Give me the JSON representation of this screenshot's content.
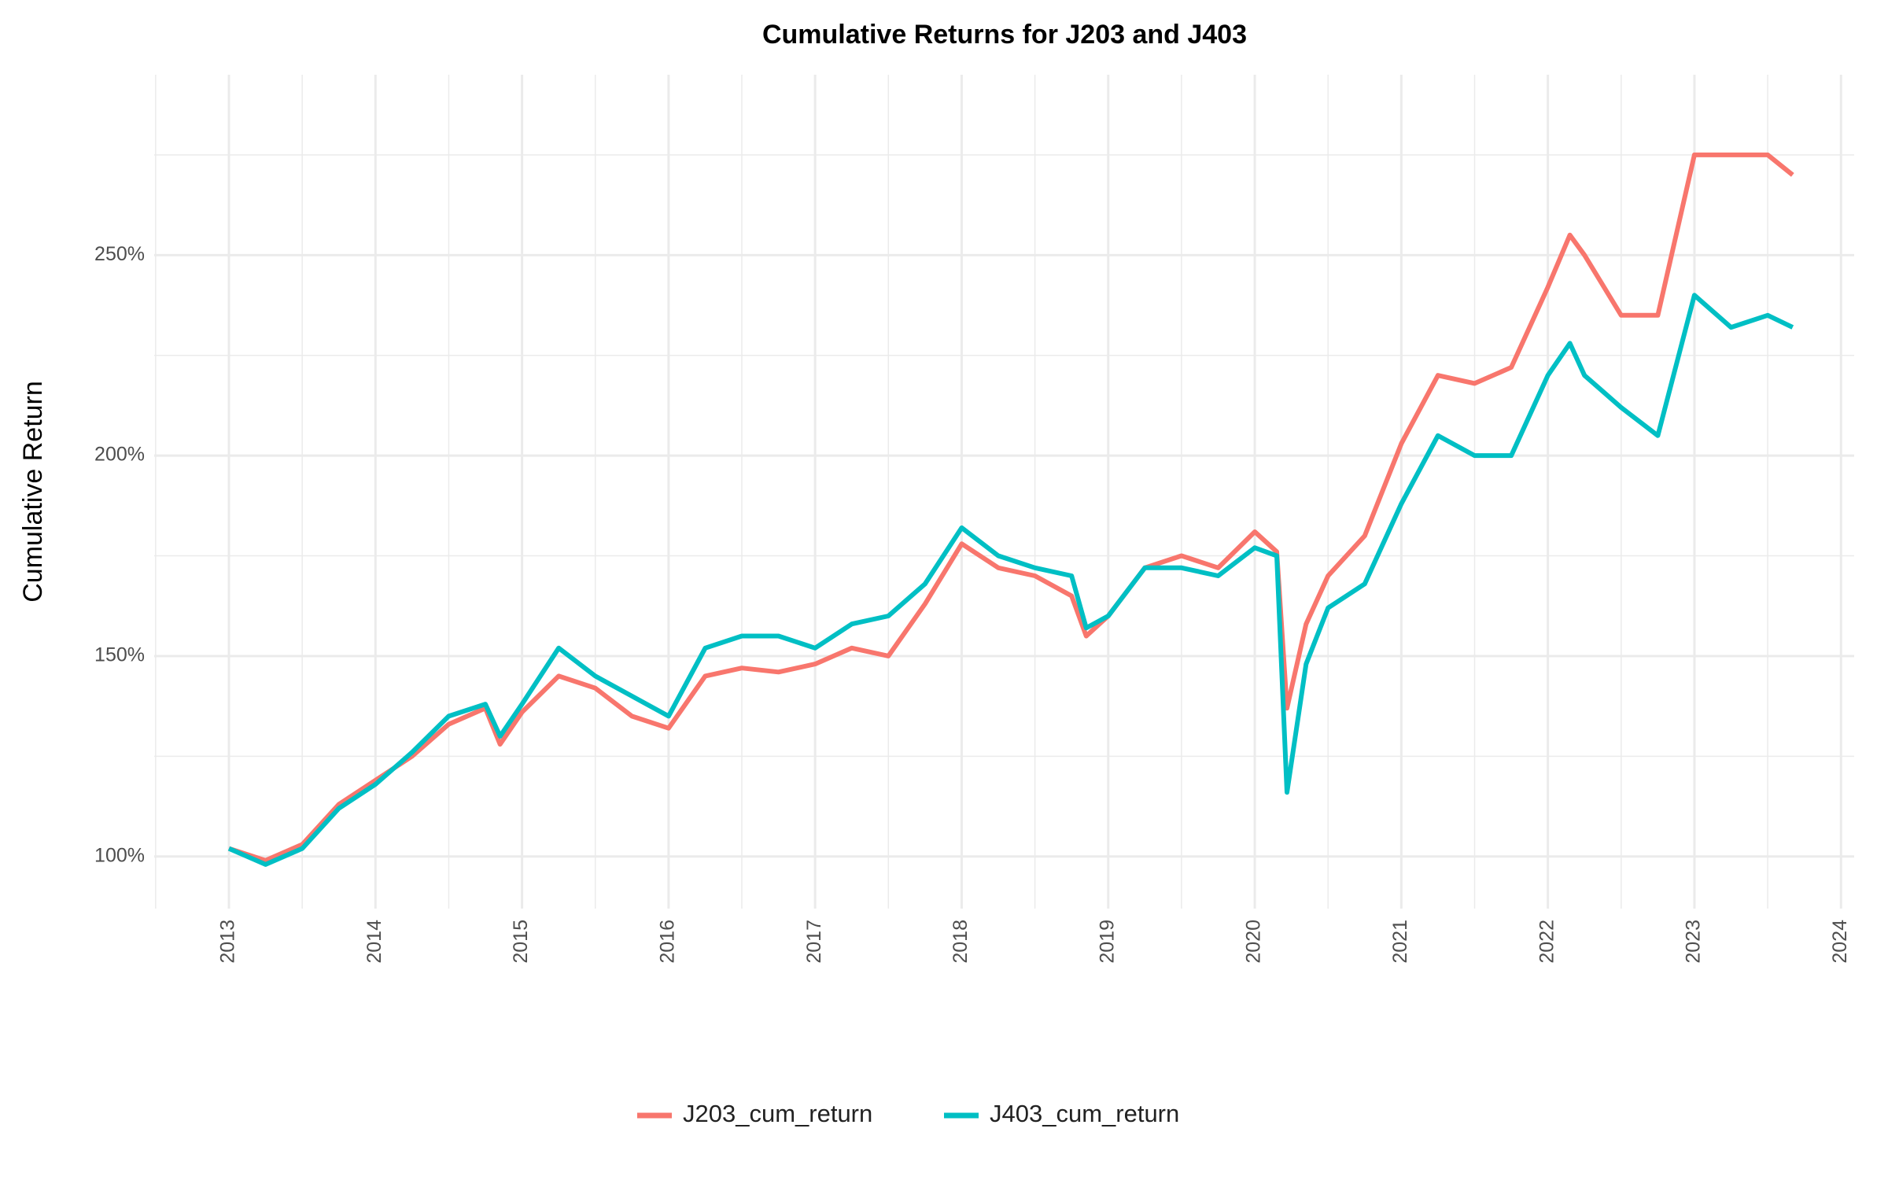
{
  "chart_data": {
    "type": "line",
    "title": "Cumulative Returns for J203 and J403",
    "y_label": "Cumulative Return",
    "x": [
      2013.0,
      2013.25,
      2013.5,
      2013.75,
      2014.0,
      2014.25,
      2014.5,
      2014.75,
      2014.85,
      2015.0,
      2015.25,
      2015.5,
      2015.75,
      2016.0,
      2016.25,
      2016.5,
      2016.75,
      2017.0,
      2017.25,
      2017.5,
      2017.75,
      2018.0,
      2018.25,
      2018.5,
      2018.75,
      2018.85,
      2019.0,
      2019.25,
      2019.5,
      2019.75,
      2020.0,
      2020.15,
      2020.22,
      2020.35,
      2020.5,
      2020.75,
      2021.0,
      2021.25,
      2021.5,
      2021.75,
      2022.0,
      2022.15,
      2022.25,
      2022.5,
      2022.75,
      2023.0,
      2023.25,
      2023.5,
      2023.67
    ],
    "series": [
      {
        "name": "J203_cum_return",
        "color": "#f8766d",
        "values": [
          102,
          99,
          103,
          113,
          119,
          125,
          133,
          137,
          128,
          136,
          145,
          142,
          135,
          132,
          145,
          147,
          146,
          148,
          152,
          150,
          163,
          178,
          172,
          170,
          165,
          155,
          160,
          172,
          175,
          172,
          181,
          176,
          137,
          158,
          170,
          180,
          203,
          220,
          218,
          222,
          242,
          255,
          250,
          235,
          235,
          275,
          275,
          275,
          270
        ]
      },
      {
        "name": "J403_cum_return",
        "color": "#00bfc4",
        "values": [
          102,
          98,
          102,
          112,
          118,
          126,
          135,
          138,
          130,
          138,
          152,
          145,
          140,
          135,
          152,
          155,
          155,
          152,
          158,
          160,
          168,
          182,
          175,
          172,
          170,
          157,
          160,
          172,
          172,
          170,
          177,
          175,
          116,
          148,
          162,
          168,
          188,
          205,
          200,
          200,
          220,
          228,
          220,
          212,
          205,
          240,
          232,
          235,
          232
        ]
      }
    ],
    "xlim": [
      2012.49,
      2024.09
    ],
    "xticks": [
      2013,
      2014,
      2015,
      2016,
      2017,
      2018,
      2019,
      2020,
      2021,
      2022,
      2023,
      2024
    ],
    "ylim": [
      87,
      295
    ],
    "yticks": [
      {
        "value": 100,
        "label": "100%"
      },
      {
        "value": 150,
        "label": "150%"
      },
      {
        "value": 200,
        "label": "200%"
      },
      {
        "value": 250,
        "label": "250%"
      }
    ],
    "grid": true,
    "legend": "bottom"
  }
}
